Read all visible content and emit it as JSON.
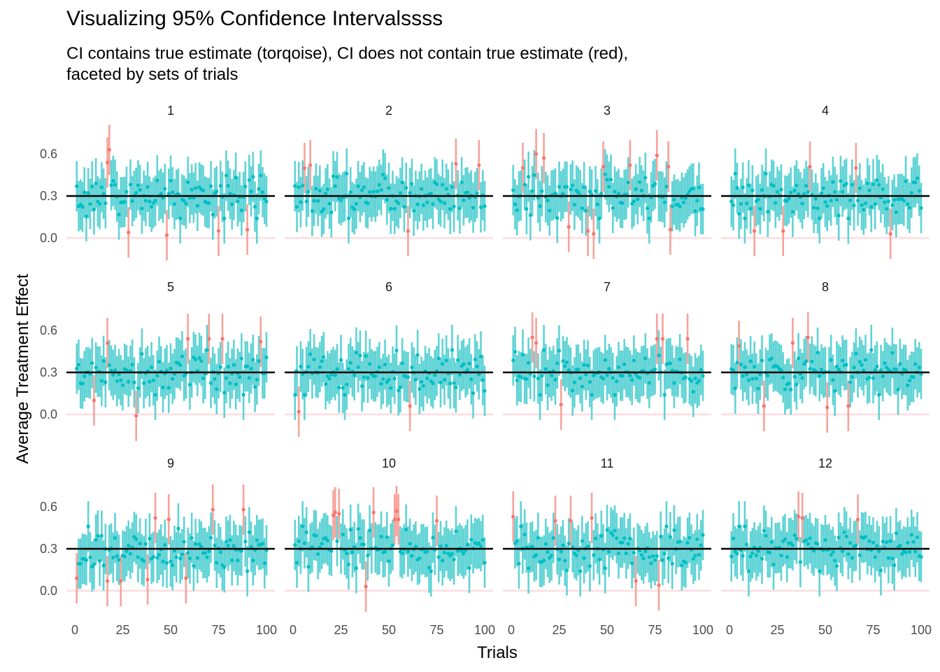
{
  "chart_data": {
    "type": "scatter",
    "title": "Visualizing 95% Confidence Intervalssss",
    "subtitle_lines": [
      "CI contains true estimate (torqoise), CI does not contain true estimate (red),",
      "faceted by sets of trials"
    ],
    "xlabel": "Trials",
    "ylabel": "Average Treatment Effect",
    "xlim": [
      0,
      100
    ],
    "ylim": [
      -0.25,
      0.8
    ],
    "x_ticks": [
      0,
      25,
      50,
      75,
      100
    ],
    "y_ticks": [
      0.0,
      0.3,
      0.6
    ],
    "y_tick_labels": [
      "0.0",
      "0.3",
      "0.6"
    ],
    "true_estimate": 0.3,
    "reference_zero": 0.0,
    "ci_half_width": 0.18,
    "n_trials_per_panel": 100,
    "colors": {
      "contains": "#00BFC4",
      "contains_interval": "#5fd3d5",
      "misses": "#F8766D",
      "misses_interval": "#f7a29c",
      "true_line": "#000000",
      "zero_line": "#fbe0e4"
    },
    "grid": false,
    "facets": [
      {
        "label": "1",
        "misses": [
          [
            17,
            0.54
          ],
          [
            18,
            0.63
          ],
          [
            28,
            0.04
          ],
          [
            48,
            0.02
          ],
          [
            75,
            0.05
          ],
          [
            90,
            0.06
          ]
        ]
      },
      {
        "label": "2",
        "misses": [
          [
            6,
            0.5
          ],
          [
            9,
            0.52
          ],
          [
            60,
            0.05
          ],
          [
            85,
            0.53
          ],
          [
            97,
            0.52
          ]
        ]
      },
      {
        "label": "3",
        "misses": [
          [
            6,
            0.5
          ],
          [
            13,
            0.6
          ],
          [
            17,
            0.57
          ],
          [
            30,
            0.08
          ],
          [
            40,
            0.05
          ],
          [
            43,
            0.03
          ],
          [
            48,
            0.51
          ],
          [
            62,
            0.52
          ],
          [
            76,
            0.59
          ],
          [
            82,
            0.51
          ],
          [
            83,
            0.06
          ]
        ]
      },
      {
        "label": "4",
        "misses": [
          [
            13,
            0.05
          ],
          [
            28,
            0.05
          ],
          [
            42,
            0.51
          ],
          [
            66,
            0.5
          ],
          [
            84,
            0.03
          ]
        ]
      },
      {
        "label": "5",
        "misses": [
          [
            17,
            0.51
          ],
          [
            10,
            0.1
          ],
          [
            32,
            -0.01
          ],
          [
            59,
            0.54
          ],
          [
            70,
            0.54
          ],
          [
            77,
            0.54
          ],
          [
            97,
            0.52
          ]
        ]
      },
      {
        "label": "6",
        "misses": [
          [
            3,
            0.02
          ],
          [
            61,
            0.06
          ]
        ]
      },
      {
        "label": "7",
        "misses": [
          [
            11,
            0.55
          ],
          [
            13,
            0.51
          ],
          [
            26,
            0.07
          ],
          [
            76,
            0.54
          ],
          [
            79,
            0.54
          ],
          [
            92,
            0.54
          ]
        ]
      },
      {
        "label": "8",
        "misses": [
          [
            5,
            0.49
          ],
          [
            18,
            0.06
          ],
          [
            33,
            0.51
          ],
          [
            41,
            0.55
          ],
          [
            51,
            0.05
          ],
          [
            62,
            0.06
          ]
        ]
      },
      {
        "label": "9",
        "misses": [
          [
            1,
            0.09
          ],
          [
            17,
            0.07
          ],
          [
            24,
            0.07
          ],
          [
            38,
            0.08
          ],
          [
            42,
            0.52
          ],
          [
            49,
            0.51
          ],
          [
            58,
            0.09
          ],
          [
            72,
            0.58
          ],
          [
            88,
            0.58
          ]
        ]
      },
      {
        "label": "10",
        "misses": [
          [
            21,
            0.54
          ],
          [
            22,
            0.56
          ],
          [
            24,
            0.55
          ],
          [
            38,
            0.03
          ],
          [
            42,
            0.56
          ],
          [
            53,
            0.51
          ],
          [
            54,
            0.57
          ],
          [
            55,
            0.51
          ],
          [
            75,
            0.5
          ]
        ]
      },
      {
        "label": "11",
        "misses": [
          [
            1,
            0.53
          ],
          [
            23,
            0.5
          ],
          [
            31,
            0.5
          ],
          [
            42,
            0.52
          ],
          [
            65,
            0.07
          ],
          [
            77,
            0.04
          ]
        ]
      },
      {
        "label": "12",
        "misses": [
          [
            36,
            0.53
          ],
          [
            38,
            0.52
          ],
          [
            67,
            0.51
          ]
        ]
      }
    ]
  }
}
